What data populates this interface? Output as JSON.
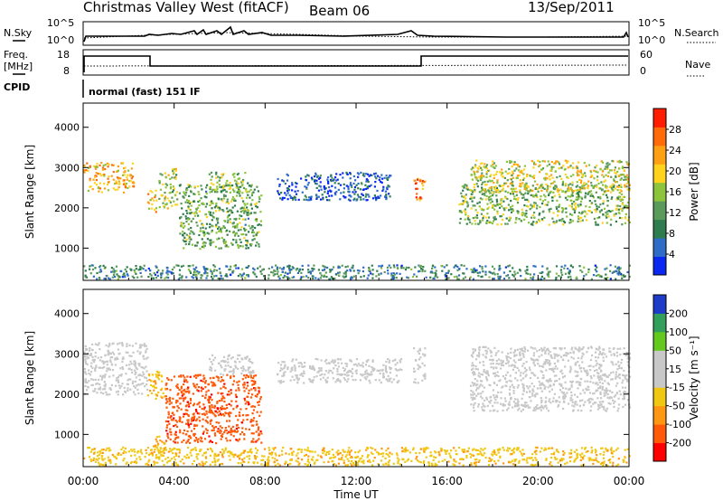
{
  "header": {
    "title": "Christmas Valley West (fitACF)",
    "beam": "Beam 06",
    "date": "13/Sep/2011"
  },
  "strips": {
    "nsky_label": "N.Sky",
    "nsearch_label": "N.Search",
    "nsky_ticks": [
      "10^5",
      "10^0"
    ],
    "nsearch_ticks": [
      "10^5",
      "10^0"
    ],
    "freq_label_1": "Freq.",
    "freq_label_2": "[MHz]",
    "freq_ticks": [
      "18",
      "8"
    ],
    "nave_label": "Nave",
    "nave_ticks": [
      "60",
      "0"
    ],
    "cpid_label": "CPID",
    "cpid_text": "normal (fast) 151 IF"
  },
  "colors": {
    "power_scale": [
      "#0a28f0",
      "#2e6cc8",
      "#2f7d4f",
      "#5a9a5a",
      "#8cc43c",
      "#ffd21e",
      "#ffa014",
      "#ff6a0a",
      "#ff1e00"
    ],
    "velocity_scale": [
      "#ff0000",
      "#ff5a0a",
      "#ff9614",
      "#f0c814",
      "#c8c8c8",
      "#c8c8c8",
      "#64c81e",
      "#32a05a",
      "#1e3cc8"
    ]
  },
  "chart_data": [
    {
      "type": "heatmap",
      "name": "power",
      "ylabel": "Slant Range [km]",
      "yticks": [
        "1000",
        "2000",
        "3000",
        "4000"
      ],
      "ylim": [
        200,
        4600
      ],
      "xlim": [
        0,
        24
      ],
      "xticks": [
        "00:00",
        "04:00",
        "08:00",
        "12:00",
        "16:00",
        "20:00",
        "00:00"
      ],
      "colorbar": {
        "label": "Power [dB]",
        "ticks": [
          "4",
          "8",
          "12",
          "16",
          "20",
          "24",
          "28"
        ],
        "range": [
          0,
          32
        ]
      },
      "features": [
        {
          "t": [
            0.0,
            2.2
          ],
          "r": [
            2400,
            3150
          ],
          "v": 22
        },
        {
          "t": [
            2.8,
            3.2
          ],
          "r": [
            1900,
            2500
          ],
          "v": 20
        },
        {
          "t": [
            3.3,
            4.1
          ],
          "r": [
            2000,
            3000
          ],
          "v": 16
        },
        {
          "t": [
            4.2,
            7.8
          ],
          "r": [
            1000,
            2600
          ],
          "v": 13
        },
        {
          "t": [
            5.5,
            7.2
          ],
          "r": [
            2400,
            2900
          ],
          "v": 14
        },
        {
          "t": [
            8.5,
            13.5
          ],
          "r": [
            2200,
            2900
          ],
          "v": 5
        },
        {
          "t": [
            14.5,
            15.0
          ],
          "r": [
            2200,
            2800
          ],
          "v": 24
        },
        {
          "t": [
            16.5,
            24.0
          ],
          "r": [
            1600,
            2600
          ],
          "v": 14
        },
        {
          "t": [
            17.0,
            24.0
          ],
          "r": [
            2400,
            3200
          ],
          "v": 18
        },
        {
          "t": [
            0.0,
            24.0
          ],
          "r": [
            250,
            600
          ],
          "v": 9
        }
      ]
    },
    {
      "type": "heatmap",
      "name": "velocity",
      "ylabel": "Slant Range [km]",
      "yticks": [
        "1000",
        "2000",
        "3000",
        "4000"
      ],
      "ylim": [
        200,
        4600
      ],
      "xlim": [
        0,
        24
      ],
      "xticks": [
        "00:00",
        "04:00",
        "08:00",
        "12:00",
        "16:00",
        "20:00",
        "00:00"
      ],
      "xlabel": "Time UT",
      "colorbar": {
        "label": "Velocity [m s⁻¹]",
        "ticks": [
          "200",
          "100",
          "50",
          "15",
          "-15",
          "-50",
          "-100",
          "-200"
        ],
        "range": [
          -250,
          250
        ]
      },
      "features": [
        {
          "t": [
            0.0,
            2.8
          ],
          "r": [
            2000,
            3300
          ],
          "v": 0
        },
        {
          "t": [
            2.8,
            3.6
          ],
          "r": [
            1900,
            2600
          ],
          "v": -80
        },
        {
          "t": [
            3.0,
            3.6
          ],
          "r": [
            500,
            1000
          ],
          "v": -90
        },
        {
          "t": [
            3.6,
            7.8
          ],
          "r": [
            800,
            2500
          ],
          "v": -180
        },
        {
          "t": [
            5.5,
            7.5
          ],
          "r": [
            2500,
            3000
          ],
          "v": 0
        },
        {
          "t": [
            8.5,
            14.0
          ],
          "r": [
            2300,
            2900
          ],
          "v": 0
        },
        {
          "t": [
            14.5,
            15.0
          ],
          "r": [
            2300,
            3200
          ],
          "v": 40
        },
        {
          "t": [
            17.0,
            24.0
          ],
          "r": [
            1600,
            3200
          ],
          "v": 0
        },
        {
          "t": [
            0.0,
            24.0
          ],
          "r": [
            250,
            700
          ],
          "v": -70
        }
      ]
    }
  ]
}
